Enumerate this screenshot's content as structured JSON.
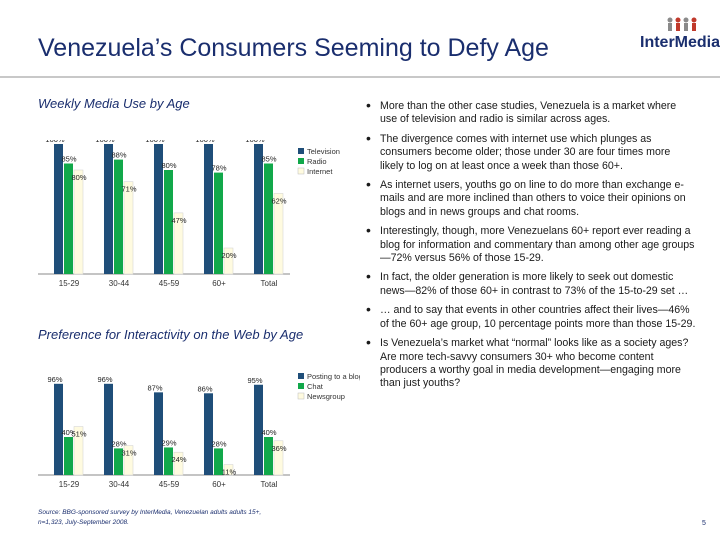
{
  "slide": {
    "title": "Venezuela’s Consumers Seeming to Defy Age",
    "logo_text": "InterMedia",
    "page_number": "5",
    "source_line1": "Source: BBG-sponsored survey by InterMedia, Venezuelan adults adults 15+,",
    "source_line2": "n=1,323, July-September 2008."
  },
  "colors": {
    "title": "#1a2e6e",
    "television": "#1f4e79",
    "radio": "#11a84a",
    "internet": "#fffbe0",
    "rule": "#c8c8c8"
  },
  "bullets": [
    "More than the other case studies, Venezuela is a market where use of television and radio is similar across ages.",
    "The divergence comes with internet use which plunges as consumers become older; those under 30 are four times more likely to log on at least once a week than those 60+.",
    "As internet users, youths go on line to do more than exchange e-mails and are more inclined than others to voice their opinions on blogs and in news groups and chat rooms.",
    "Interestingly, though, more Venezuelans 60+ report ever reading a blog for information and commentary than among other age groups—72% versus 56% of those 15-29.",
    "In fact, the older generation is more likely to seek out domestic news—82% of those 60+ in contrast to 73% of the 15-to-29 set …",
    "… and to say that events in other countries affect their lives—46% of the 60+ age group, 10 percentage points more than those 15-29.",
    "Is Venezuela’s market what “normal” looks like as a society ages? Are more tech-savvy consumers 30+ who become content producers a worthy goal in media development—engaging more than just youths?"
  ],
  "chart_data": [
    {
      "type": "bar",
      "title": "Weekly Media Use by Age",
      "categories": [
        "15-29",
        "30-44",
        "45-59",
        "60+",
        "Total"
      ],
      "series": [
        {
          "name": "Television",
          "values": [
            100,
            100,
            100,
            100,
            100
          ],
          "labels": [
            "100%",
            "100%",
            "100%",
            "100%",
            "100%"
          ]
        },
        {
          "name": "Radio",
          "values": [
            85,
            88,
            80,
            78,
            85
          ],
          "labels": [
            "85%",
            "88%",
            "80%",
            "78%",
            "85%"
          ]
        },
        {
          "name": "Internet",
          "values": [
            80,
            71,
            47,
            20,
            62
          ],
          "labels": [
            "80%",
            "71%",
            "47%",
            "20%",
            "62%"
          ]
        }
      ],
      "ylim": [
        0,
        100
      ],
      "legend": "right",
      "grid": false
    },
    {
      "type": "bar",
      "title": "Preference for Interactivity on the Web by Age",
      "categories": [
        "15-29",
        "30-44",
        "45-59",
        "60+",
        "Total"
      ],
      "series": [
        {
          "name": "Posting to a blog",
          "values": [
            96,
            96,
            87,
            86,
            95
          ],
          "labels": [
            "96%",
            "96%",
            "87%",
            "86%",
            "95%"
          ]
        },
        {
          "name": "Chat",
          "values": [
            40,
            28,
            29,
            28,
            40
          ],
          "labels": [
            "40%",
            "28%",
            "29%",
            "28%",
            "40%"
          ]
        },
        {
          "name": "Newsgroup",
          "values": [
            51,
            31,
            24,
            11,
            36
          ],
          "labels": [
            "51%",
            "31%",
            "24%",
            "11%",
            "36%"
          ]
        }
      ],
      "ylim": [
        0,
        100
      ],
      "legend": "right",
      "grid": false
    }
  ]
}
